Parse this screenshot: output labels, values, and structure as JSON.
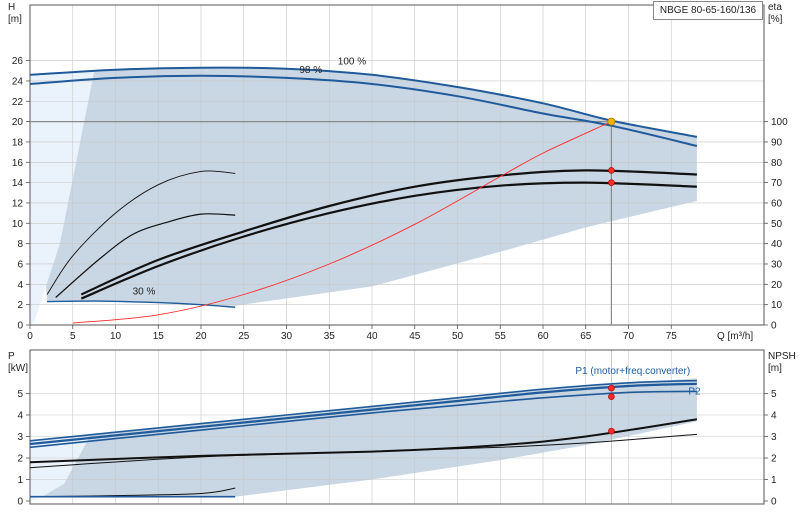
{
  "title": "NBGE 80-65-160/136",
  "colors": {
    "envelope": "#c9d6e3",
    "envelope_light": "#eaf2fb",
    "curve_blue": "#1f5a9a",
    "system_red": "#ff2a2a",
    "duty_orange": "#f5b400",
    "grid": "#c8c8c8",
    "duty_line": "#8a8a8a"
  },
  "chart_data": [
    {
      "type": "line",
      "panel": "head",
      "y_label_left": [
        "H",
        "[m]"
      ],
      "y_label_right": [
        "eta",
        "[%]"
      ],
      "x_label": "Q [m³/h]",
      "xlim": [
        0,
        80
      ],
      "ylim_left": [
        0,
        28
      ],
      "ylim_right": [
        0,
        140
      ],
      "x_ticks": [
        "0",
        "5",
        "10",
        "15",
        "20",
        "25",
        "30",
        "35",
        "40",
        "45",
        "50",
        "55",
        "60",
        "65",
        "70",
        "75"
      ],
      "y_ticks_left": [
        "0",
        "2",
        "4",
        "6",
        "8",
        "10",
        "12",
        "14",
        "16",
        "18",
        "20",
        "22",
        "24",
        "26"
      ],
      "y_ticks_right": [
        "0",
        "10",
        "20",
        "30",
        "40",
        "50",
        "60",
        "70",
        "80",
        "90",
        "100"
      ],
      "speed_labels": [
        {
          "text": "100 %",
          "x": 36,
          "y": 25.6
        },
        {
          "text": "98 %",
          "x": 31.5,
          "y": 24.8
        },
        {
          "text": "30 %",
          "x": 12,
          "y": 3.0
        }
      ],
      "envelope_upper": [
        [
          0,
          24.6
        ],
        [
          10,
          25.1
        ],
        [
          20,
          25.3
        ],
        [
          30,
          25.2
        ],
        [
          40,
          24.6
        ],
        [
          50,
          23.4
        ],
        [
          60,
          21.8
        ],
        [
          68,
          20.1
        ],
        [
          78,
          18.5
        ]
      ],
      "envelope_lower_h": [
        [
          2,
          2.3
        ],
        [
          10,
          2.3
        ],
        [
          24,
          1.9
        ],
        [
          40,
          3.8
        ],
        [
          55,
          7.2
        ],
        [
          65,
          9.6
        ],
        [
          78,
          12.2
        ]
      ],
      "light_region": [
        [
          0,
          0
        ],
        [
          0,
          24.6
        ],
        [
          7.5,
          24.9
        ],
        [
          3.5,
          8
        ],
        [
          0.5,
          0.3
        ]
      ],
      "series": [
        {
          "name": "100 %",
          "role": "head",
          "points": [
            [
              0,
              24.6
            ],
            [
              10,
              25.1
            ],
            [
              20,
              25.3
            ],
            [
              30,
              25.2
            ],
            [
              40,
              24.6
            ],
            [
              50,
              23.4
            ],
            [
              60,
              21.8
            ],
            [
              68,
              20.1
            ],
            [
              78,
              18.5
            ]
          ]
        },
        {
          "name": "98 %",
          "role": "head",
          "points": [
            [
              0,
              23.7
            ],
            [
              10,
              24.3
            ],
            [
              20,
              24.5
            ],
            [
              30,
              24.3
            ],
            [
              40,
              23.7
            ],
            [
              50,
              22.5
            ],
            [
              60,
              20.8
            ],
            [
              68,
              19.6
            ],
            [
              78,
              17.6
            ]
          ]
        },
        {
          "name": "30 %",
          "role": "head",
          "points": [
            [
              2,
              2.3
            ],
            [
              8,
              2.35
            ],
            [
              15,
              2.2
            ],
            [
              20,
              2.0
            ],
            [
              24,
              1.75
            ]
          ]
        },
        {
          "role": "efficiency",
          "points": [
            [
              2,
              3.0
            ],
            [
              5,
              6.8
            ],
            [
              10,
              11.0
            ],
            [
              15,
              13.8
            ],
            [
              20,
              15.1
            ],
            [
              24,
              14.9
            ]
          ]
        },
        {
          "role": "efficiency",
          "points": [
            [
              3,
              2.7
            ],
            [
              8,
              6.4
            ],
            [
              12,
              8.9
            ],
            [
              16,
              10.1
            ],
            [
              20,
              10.9
            ],
            [
              24,
              10.8
            ]
          ]
        },
        {
          "role": "efficiency",
          "points": [
            [
              6,
              3.0
            ],
            [
              15,
              6.4
            ],
            [
              25,
              9.2
            ],
            [
              35,
              11.7
            ],
            [
              45,
              13.6
            ],
            [
              55,
              14.7
            ],
            [
              65,
              15.2
            ],
            [
              78,
              14.8
            ]
          ]
        },
        {
          "role": "efficiency",
          "points": [
            [
              6,
              2.6
            ],
            [
              15,
              5.8
            ],
            [
              25,
              8.7
            ],
            [
              35,
              11.0
            ],
            [
              45,
              12.7
            ],
            [
              55,
              13.7
            ],
            [
              65,
              14.0
            ],
            [
              78,
              13.6
            ]
          ]
        },
        {
          "role": "system",
          "points": [
            [
              5,
              0.2
            ],
            [
              15,
              1.0
            ],
            [
              25,
              3.0
            ],
            [
              35,
              6.0
            ],
            [
              45,
              9.9
            ],
            [
              55,
              14.6
            ],
            [
              60,
              16.9
            ],
            [
              68,
              20.0
            ]
          ]
        }
      ],
      "duty_point": {
        "q": 68,
        "h": 20.0
      },
      "markers": [
        {
          "q": 68,
          "h": 15.2
        },
        {
          "q": 68,
          "h": 14.0
        }
      ]
    },
    {
      "type": "line",
      "panel": "power",
      "y_label_left": [
        "P",
        "[kW]"
      ],
      "y_label_right": [
        "NPSH",
        "[m]"
      ],
      "xlim": [
        0,
        80
      ],
      "ylim_left": [
        0,
        6
      ],
      "ylim_right": [
        0,
        6
      ],
      "y_ticks_left": [
        "0",
        "1",
        "2",
        "3",
        "4",
        "5"
      ],
      "y_ticks_right": [
        "0",
        "1",
        "2",
        "3",
        "4",
        "5"
      ],
      "labels": [
        {
          "text": "P1 (motor+freq.converter)",
          "x": 70.5,
          "y": 5.9
        },
        {
          "text": "P2",
          "x": 77,
          "y": 4.95
        }
      ],
      "envelope_upper": [
        [
          0,
          2.8
        ],
        [
          10,
          3.2
        ],
        [
          20,
          3.6
        ],
        [
          30,
          4.0
        ],
        [
          40,
          4.4
        ],
        [
          50,
          4.8
        ],
        [
          60,
          5.2
        ],
        [
          70,
          5.5
        ],
        [
          78,
          5.7
        ]
      ],
      "envelope_lower": [
        [
          0,
          0.2
        ],
        [
          10,
          0.2
        ],
        [
          24,
          0.2
        ],
        [
          40,
          1.0
        ],
        [
          55,
          1.9
        ],
        [
          65,
          2.6
        ],
        [
          78,
          3.7
        ]
      ],
      "light_region": [
        [
          0,
          0
        ],
        [
          0,
          2.8
        ],
        [
          7,
          3.0
        ],
        [
          4,
          0.8
        ],
        [
          1,
          0.1
        ]
      ],
      "series": [
        {
          "name": "P1 (motor+freq.converter)",
          "points": [
            [
              0,
              2.8
            ],
            [
              10,
              3.2
            ],
            [
              20,
              3.6
            ],
            [
              30,
              4.0
            ],
            [
              40,
              4.4
            ],
            [
              50,
              4.8
            ],
            [
              60,
              5.2
            ],
            [
              70,
              5.5
            ],
            [
              78,
              5.6
            ]
          ]
        },
        {
          "role": "power",
          "points": [
            [
              0,
              2.65
            ],
            [
              10,
              3.05
            ],
            [
              20,
              3.45
            ],
            [
              30,
              3.85
            ],
            [
              40,
              4.25
            ],
            [
              50,
              4.65
            ],
            [
              60,
              5.05
            ],
            [
              70,
              5.35
            ],
            [
              78,
              5.45
            ]
          ]
        },
        {
          "name": "P2",
          "points": [
            [
              0,
              2.5
            ],
            [
              10,
              2.9
            ],
            [
              20,
              3.3
            ],
            [
              30,
              3.7
            ],
            [
              40,
              4.1
            ],
            [
              50,
              4.45
            ],
            [
              60,
              4.8
            ],
            [
              70,
              5.05
            ],
            [
              78,
              5.1
            ]
          ]
        },
        {
          "role": "npsh",
          "points": [
            [
              0,
              1.8
            ],
            [
              20,
              2.1
            ],
            [
              40,
              2.3
            ],
            [
              55,
              2.6
            ],
            [
              65,
              3.0
            ],
            [
              78,
              3.8
            ]
          ]
        },
        {
          "role": "npsh",
          "points": [
            [
              0,
              1.55
            ],
            [
              20,
              2.05
            ],
            [
              40,
              2.3
            ],
            [
              55,
              2.5
            ],
            [
              65,
              2.7
            ],
            [
              78,
              3.1
            ]
          ]
        },
        {
          "role": "power-30",
          "points": [
            [
              0,
              0.2
            ],
            [
              10,
              0.25
            ],
            [
              20,
              0.35
            ],
            [
              24,
              0.6
            ]
          ]
        }
      ],
      "markers": [
        {
          "q": 68,
          "v": 5.25
        },
        {
          "q": 68,
          "v": 4.85
        },
        {
          "q": 68,
          "v": 3.25
        }
      ]
    }
  ]
}
